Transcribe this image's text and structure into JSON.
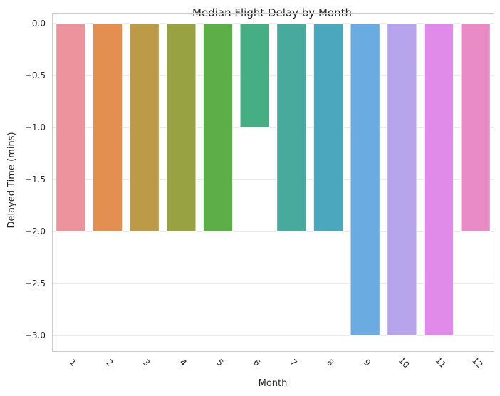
{
  "chart_data": {
    "type": "bar",
    "title": "Median Flight Delay by Month",
    "xlabel": "Month",
    "ylabel": "Delayed Time (mins)",
    "categories": [
      "1",
      "2",
      "3",
      "4",
      "5",
      "6",
      "7",
      "8",
      "9",
      "10",
      "11",
      "12"
    ],
    "values": [
      -2,
      -2,
      -2,
      -2,
      -2,
      -1,
      -2,
      -2,
      -3,
      -3,
      -3,
      -2
    ],
    "ylim": [
      -3.15,
      0
    ],
    "yticks": [
      0.0,
      -0.5,
      -1.0,
      -1.5,
      -2.0,
      -2.5,
      -3.0
    ],
    "ytick_labels": [
      "0.0",
      "−0.5",
      "−1.0",
      "−1.5",
      "−2.0",
      "−2.5",
      "−3.0"
    ],
    "grid": true,
    "colors": [
      "#ec939e",
      "#e48f52",
      "#bc9a48",
      "#98a242",
      "#5dae48",
      "#45ae85",
      "#48aa9d",
      "#4aa7bd",
      "#6aace2",
      "#b6a5ec",
      "#e08bea",
      "#e98cc6"
    ]
  }
}
